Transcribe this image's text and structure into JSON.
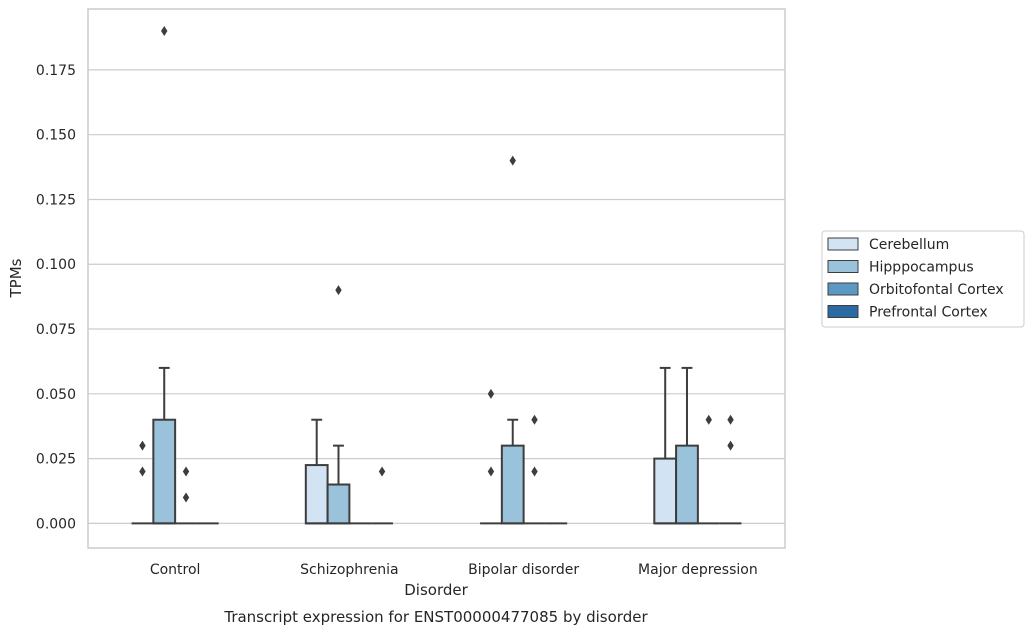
{
  "chart_data": {
    "type": "boxplot",
    "caption": "Transcript expression for ENST00000477085 by disorder",
    "xlabel": "Disorder",
    "ylabel": "TPMs",
    "ylim": [
      -0.0095,
      0.1985
    ],
    "yticks": [
      0.0,
      0.025,
      0.05,
      0.075,
      0.1,
      0.125,
      0.15,
      0.175
    ],
    "ytick_labels": [
      "0.000",
      "0.025",
      "0.050",
      "0.075",
      "0.100",
      "0.125",
      "0.150",
      "0.175"
    ],
    "grid": "horizontal",
    "legend_position": "right",
    "categories": [
      "Control",
      "Schizophrenia",
      "Bipolar disorder",
      "Major depression"
    ],
    "series": [
      {
        "name": "Cerebellum",
        "color": "#d2e3f3",
        "boxes": [
          {
            "q1": 0,
            "median": 0,
            "q3": 0,
            "whislo": 0,
            "whishi": 0,
            "fliers": [
              0.02,
              0.03
            ]
          },
          {
            "q1": 0,
            "median": 0,
            "q3": 0.0225,
            "whislo": 0,
            "whishi": 0.04,
            "fliers": []
          },
          {
            "q1": 0,
            "median": 0,
            "q3": 0,
            "whislo": 0,
            "whishi": 0,
            "fliers": [
              0.02,
              0.05
            ]
          },
          {
            "q1": 0,
            "median": 0,
            "q3": 0.025,
            "whislo": 0,
            "whishi": 0.06,
            "fliers": []
          }
        ]
      },
      {
        "name": "Hipppocampus",
        "color": "#9ac2da",
        "boxes": [
          {
            "q1": 0,
            "median": 0,
            "q3": 0.04,
            "whislo": 0,
            "whishi": 0.06,
            "fliers": [
              0.19
            ]
          },
          {
            "q1": 0,
            "median": 0,
            "q3": 0.015,
            "whislo": 0,
            "whishi": 0.03,
            "fliers": [
              0.09
            ]
          },
          {
            "q1": 0,
            "median": 0,
            "q3": 0.03,
            "whislo": 0,
            "whishi": 0.04,
            "fliers": [
              0.14
            ]
          },
          {
            "q1": 0,
            "median": 0,
            "q3": 0.03,
            "whislo": 0,
            "whishi": 0.06,
            "fliers": []
          }
        ]
      },
      {
        "name": "Orbitofontal Cortex",
        "color": "#5b98c2",
        "boxes": [
          {
            "q1": 0,
            "median": 0,
            "q3": 0,
            "whislo": 0,
            "whishi": 0,
            "fliers": [
              0.01,
              0.02
            ]
          },
          {
            "q1": 0,
            "median": 0,
            "q3": 0,
            "whislo": 0,
            "whishi": 0,
            "fliers": []
          },
          {
            "q1": 0,
            "median": 0,
            "q3": 0,
            "whislo": 0,
            "whishi": 0,
            "fliers": [
              0.02,
              0.04
            ]
          },
          {
            "q1": 0,
            "median": 0,
            "q3": 0,
            "whislo": 0,
            "whishi": 0,
            "fliers": [
              0.04
            ]
          }
        ]
      },
      {
        "name": "Prefrontal Cortex",
        "color": "#2b6ba4",
        "boxes": [
          {
            "q1": 0,
            "median": 0,
            "q3": 0,
            "whislo": 0,
            "whishi": 0,
            "fliers": []
          },
          {
            "q1": 0,
            "median": 0,
            "q3": 0,
            "whislo": 0,
            "whishi": 0,
            "fliers": [
              0.02
            ]
          },
          {
            "q1": 0,
            "median": 0,
            "q3": 0,
            "whislo": 0,
            "whishi": 0,
            "fliers": []
          },
          {
            "q1": 0,
            "median": 0,
            "q3": 0,
            "whislo": 0,
            "whishi": 0,
            "fliers": [
              0.03,
              0.04
            ]
          }
        ]
      }
    ]
  }
}
